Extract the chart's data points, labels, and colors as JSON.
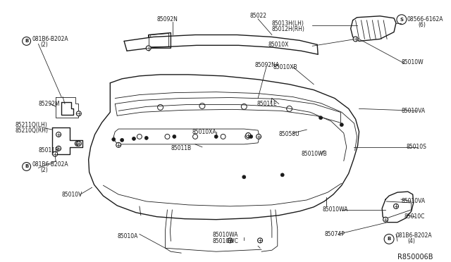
{
  "bg_color": "#ffffff",
  "line_color": "#1a1a1a",
  "diagram_id": "R850006B",
  "labels": {
    "top_left_bolt1": "081B6-B202A\n(2)",
    "bracket_small": "85292M",
    "bracket_lh_rh": "85211Q(LH)\n85210Q(RH)",
    "bolt_b11": "85011B",
    "top_left_bolt2": "081B6-B202A\n(2)",
    "v_label": "85010V",
    "a_label": "85010A",
    "beam_label": "85092N",
    "top_beam": "85022",
    "beam_na": "85092NA",
    "e_label": "85011E",
    "xa_label": "85010XA",
    "b11_label": "85011B",
    "wa1_label": "85010WA",
    "wc_label": "85010WC",
    "lh_rh_corner": "85013H(LH)\n85012H(RH)",
    "x_label": "85010X",
    "xb_label": "85010XB",
    "u_label": "85058U",
    "wb_label": "85010WB",
    "wa2_label": "85010WA",
    "p_label": "85074P",
    "bolt_s": "08566-6162A\n(6)",
    "w_label": "85010W",
    "va1_label": "85010VA",
    "s_label": "85010S",
    "va2_label": "85010VA",
    "c_label": "85010C",
    "bolt_b4": "081B6-B202A\n(4)"
  }
}
